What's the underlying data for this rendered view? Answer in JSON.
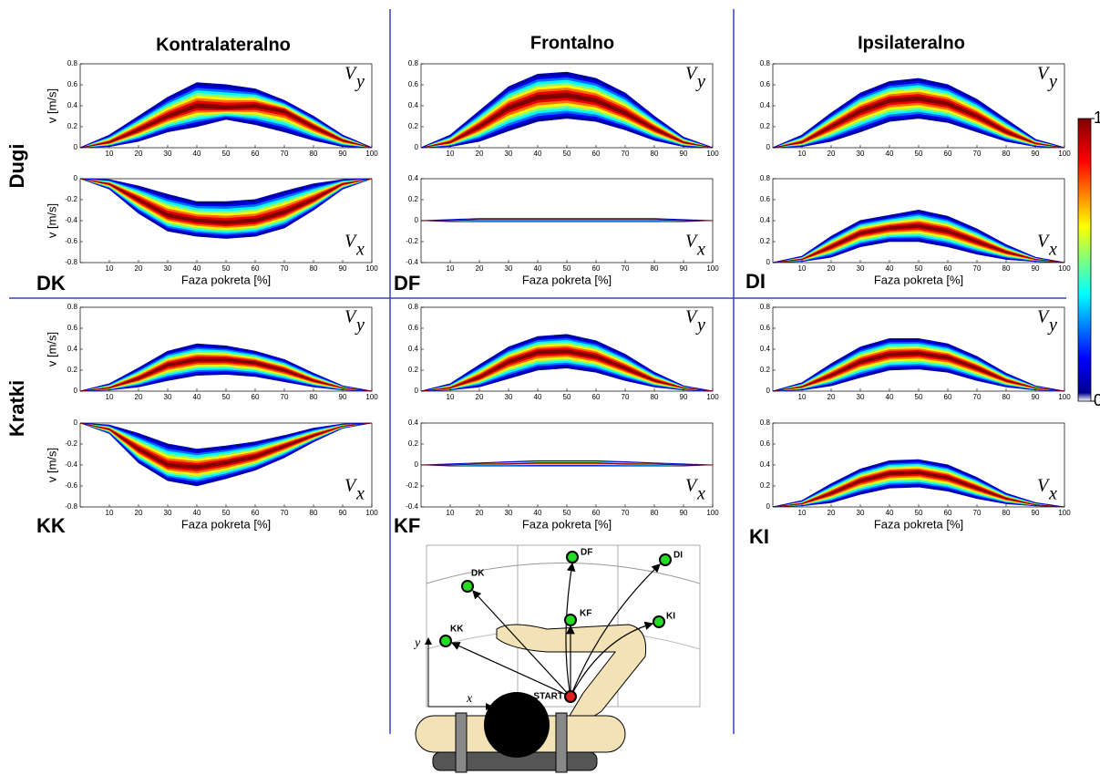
{
  "column_titles": [
    "Kontralateralno",
    "Frontalno",
    "Ipsilateralno"
  ],
  "row_labels": [
    "Dugi",
    "Kratki"
  ],
  "panel_labels": [
    "DK",
    "DF",
    "DI",
    "KK",
    "KF",
    "KI"
  ],
  "colorbar": {
    "lim": [
      0,
      1
    ],
    "ticks": [
      0,
      1
    ]
  },
  "diagram": {
    "targets": [
      "DK",
      "DF",
      "DI",
      "KK",
      "KF",
      "KI"
    ],
    "start": "START",
    "x_axis": "x",
    "y_axis": "y"
  },
  "chart_data": [
    {
      "type": "band",
      "ylabel": "v [m/s]",
      "annotation": "V",
      "annotation_sub": "y",
      "x": [
        0,
        10,
        20,
        30,
        40,
        50,
        60,
        70,
        80,
        90,
        100
      ],
      "values": [
        0,
        0.05,
        0.17,
        0.3,
        0.4,
        0.38,
        0.4,
        0.35,
        0.2,
        0.07,
        0
      ],
      "upper": [
        0,
        0.12,
        0.3,
        0.48,
        0.62,
        0.6,
        0.56,
        0.45,
        0.3,
        0.12,
        0
      ],
      "lower": [
        0,
        0.01,
        0.06,
        0.15,
        0.2,
        0.27,
        0.22,
        0.15,
        0.07,
        0.01,
        0
      ],
      "xlim": [
        0,
        100
      ],
      "ylim": [
        0,
        0.8
      ],
      "xticks": [
        10,
        20,
        30,
        40,
        50,
        60,
        70,
        80,
        90,
        100
      ],
      "yticks": [
        0,
        0.2,
        0.4,
        0.6,
        0.8
      ]
    },
    {
      "type": "band",
      "ylabel": "v [m/s]",
      "xlabel": "Faza pokreta [%]",
      "annotation": "V",
      "annotation_sub": "x",
      "x": [
        0,
        10,
        20,
        30,
        40,
        50,
        60,
        70,
        80,
        90,
        100
      ],
      "values": [
        0,
        -0.05,
        -0.2,
        -0.35,
        -0.4,
        -0.42,
        -0.4,
        -0.32,
        -0.2,
        -0.05,
        0
      ],
      "upper": [
        0,
        -0.01,
        -0.07,
        -0.15,
        -0.22,
        -0.22,
        -0.2,
        -0.12,
        -0.05,
        -0.01,
        0
      ],
      "lower": [
        0,
        -0.1,
        -0.33,
        -0.5,
        -0.55,
        -0.57,
        -0.55,
        -0.47,
        -0.3,
        -0.1,
        0
      ],
      "xlim": [
        0,
        100
      ],
      "ylim": [
        -0.8,
        0
      ],
      "xticks": [
        10,
        20,
        30,
        40,
        50,
        60,
        70,
        80,
        90,
        100
      ],
      "yticks": [
        -0.8,
        -0.6,
        -0.4,
        -0.2,
        0
      ]
    },
    {
      "type": "band",
      "annotation": "V",
      "annotation_sub": "y",
      "x": [
        0,
        10,
        20,
        30,
        40,
        50,
        60,
        70,
        80,
        90,
        100
      ],
      "values": [
        0,
        0.05,
        0.2,
        0.38,
        0.48,
        0.5,
        0.45,
        0.33,
        0.18,
        0.05,
        0
      ],
      "upper": [
        0,
        0.12,
        0.35,
        0.58,
        0.7,
        0.72,
        0.66,
        0.52,
        0.3,
        0.1,
        0
      ],
      "lower": [
        0,
        0.01,
        0.06,
        0.16,
        0.25,
        0.28,
        0.25,
        0.17,
        0.07,
        0.01,
        0
      ],
      "xlim": [
        0,
        100
      ],
      "ylim": [
        0,
        0.8
      ],
      "xticks": [
        10,
        20,
        30,
        40,
        50,
        60,
        70,
        80,
        90,
        100
      ],
      "yticks": [
        0,
        0.2,
        0.4,
        0.6,
        0.8
      ]
    },
    {
      "type": "band",
      "xlabel": "Faza pokreta [%]",
      "annotation": "V",
      "annotation_sub": "x",
      "x": [
        0,
        10,
        20,
        30,
        40,
        50,
        60,
        70,
        80,
        90,
        100
      ],
      "values": [
        0,
        0,
        0.01,
        0.01,
        0.01,
        0.01,
        0.01,
        0.01,
        0.01,
        0,
        0
      ],
      "upper": [
        0,
        0.01,
        0.02,
        0.02,
        0.02,
        0.02,
        0.02,
        0.02,
        0.02,
        0.01,
        0
      ],
      "lower": [
        0,
        -0.01,
        -0.01,
        -0.01,
        -0.01,
        -0.01,
        -0.01,
        -0.01,
        -0.01,
        -0.01,
        0
      ],
      "xlim": [
        0,
        100
      ],
      "ylim": [
        -0.4,
        0.4
      ],
      "xticks": [
        10,
        20,
        30,
        40,
        50,
        60,
        70,
        80,
        90,
        100
      ],
      "yticks": [
        -0.4,
        -0.2,
        0,
        0.2,
        0.4
      ]
    },
    {
      "type": "band",
      "annotation": "V",
      "annotation_sub": "y",
      "x": [
        0,
        10,
        20,
        30,
        40,
        50,
        60,
        70,
        80,
        90,
        100
      ],
      "values": [
        0,
        0.05,
        0.2,
        0.35,
        0.45,
        0.47,
        0.42,
        0.3,
        0.15,
        0.04,
        0
      ],
      "upper": [
        0,
        0.12,
        0.33,
        0.52,
        0.63,
        0.66,
        0.6,
        0.46,
        0.27,
        0.08,
        0
      ],
      "lower": [
        0,
        0.01,
        0.06,
        0.15,
        0.25,
        0.28,
        0.24,
        0.15,
        0.06,
        0.01,
        0
      ],
      "xlim": [
        0,
        100
      ],
      "ylim": [
        0,
        0.8
      ],
      "xticks": [
        10,
        20,
        30,
        40,
        50,
        60,
        70,
        80,
        90,
        100
      ],
      "yticks": [
        0,
        0.2,
        0.4,
        0.6,
        0.8
      ]
    },
    {
      "type": "band",
      "xlabel": "Faza pokreta [%]",
      "annotation": "V",
      "annotation_sub": "x",
      "x": [
        0,
        10,
        20,
        30,
        40,
        50,
        60,
        70,
        80,
        90,
        100
      ],
      "values": [
        0,
        0.03,
        0.15,
        0.28,
        0.33,
        0.35,
        0.3,
        0.2,
        0.1,
        0.03,
        0
      ],
      "upper": [
        0,
        0.06,
        0.25,
        0.4,
        0.45,
        0.5,
        0.44,
        0.32,
        0.17,
        0.05,
        0
      ],
      "lower": [
        0,
        0.01,
        0.05,
        0.15,
        0.2,
        0.2,
        0.15,
        0.08,
        0.03,
        0.01,
        0
      ],
      "xlim": [
        0,
        100
      ],
      "ylim": [
        0,
        0.8
      ],
      "xticks": [
        10,
        20,
        30,
        40,
        50,
        60,
        70,
        80,
        90,
        100
      ],
      "yticks": [
        0,
        0.2,
        0.4,
        0.6,
        0.8
      ]
    },
    {
      "type": "band",
      "ylabel": "v [m/s]",
      "annotation": "V",
      "annotation_sub": "y",
      "x": [
        0,
        10,
        20,
        30,
        40,
        50,
        60,
        70,
        80,
        90,
        100
      ],
      "values": [
        0,
        0.03,
        0.12,
        0.25,
        0.3,
        0.3,
        0.27,
        0.2,
        0.1,
        0.03,
        0
      ],
      "upper": [
        0,
        0.07,
        0.22,
        0.38,
        0.45,
        0.43,
        0.38,
        0.3,
        0.17,
        0.05,
        0
      ],
      "lower": [
        0,
        0.01,
        0.04,
        0.1,
        0.15,
        0.16,
        0.14,
        0.09,
        0.04,
        0.01,
        0
      ],
      "xlim": [
        0,
        100
      ],
      "ylim": [
        0,
        0.8
      ],
      "xticks": [
        10,
        20,
        30,
        40,
        50,
        60,
        70,
        80,
        90,
        100
      ],
      "yticks": [
        0,
        0.2,
        0.4,
        0.6,
        0.8
      ]
    },
    {
      "type": "band",
      "ylabel": "v [m/s]",
      "xlabel": "Faza pokreta [%]",
      "annotation": "V",
      "annotation_sub": "x",
      "x": [
        0,
        10,
        20,
        30,
        40,
        50,
        60,
        70,
        80,
        90,
        100
      ],
      "values": [
        0,
        -0.06,
        -0.25,
        -0.4,
        -0.42,
        -0.38,
        -0.32,
        -0.22,
        -0.12,
        -0.03,
        0
      ],
      "upper": [
        0,
        -0.02,
        -0.1,
        -0.2,
        -0.25,
        -0.22,
        -0.18,
        -0.12,
        -0.05,
        -0.01,
        0
      ],
      "lower": [
        0,
        -0.1,
        -0.38,
        -0.55,
        -0.6,
        -0.53,
        -0.45,
        -0.33,
        -0.18,
        -0.05,
        0
      ],
      "xlim": [
        0,
        100
      ],
      "ylim": [
        -0.8,
        0
      ],
      "xticks": [
        10,
        20,
        30,
        40,
        50,
        60,
        70,
        80,
        90,
        100
      ],
      "yticks": [
        -0.8,
        -0.6,
        -0.4,
        -0.2,
        0
      ]
    },
    {
      "type": "band",
      "annotation": "V",
      "annotation_sub": "y",
      "x": [
        0,
        10,
        20,
        30,
        40,
        50,
        60,
        70,
        80,
        90,
        100
      ],
      "values": [
        0,
        0.03,
        0.13,
        0.28,
        0.37,
        0.38,
        0.33,
        0.22,
        0.1,
        0.03,
        0
      ],
      "upper": [
        0,
        0.07,
        0.25,
        0.42,
        0.52,
        0.54,
        0.48,
        0.35,
        0.18,
        0.05,
        0
      ],
      "lower": [
        0,
        0.01,
        0.04,
        0.12,
        0.2,
        0.22,
        0.18,
        0.1,
        0.04,
        0.01,
        0
      ],
      "xlim": [
        0,
        100
      ],
      "ylim": [
        0,
        0.8
      ],
      "xticks": [
        10,
        20,
        30,
        40,
        50,
        60,
        70,
        80,
        90,
        100
      ],
      "yticks": [
        0,
        0.2,
        0.4,
        0.6,
        0.8
      ]
    },
    {
      "type": "band",
      "xlabel": "Faza pokreta [%]",
      "annotation": "V",
      "annotation_sub": "x",
      "x": [
        0,
        10,
        20,
        30,
        40,
        50,
        60,
        70,
        80,
        90,
        100
      ],
      "values": [
        0,
        0,
        0.01,
        0.01,
        0.02,
        0.02,
        0.02,
        0.01,
        0.01,
        0,
        0
      ],
      "upper": [
        0,
        0.01,
        0.02,
        0.03,
        0.04,
        0.04,
        0.04,
        0.03,
        0.02,
        0.01,
        0
      ],
      "lower": [
        0,
        -0.01,
        -0.01,
        -0.01,
        -0.01,
        -0.01,
        -0.01,
        -0.01,
        -0.01,
        -0.01,
        0
      ],
      "xlim": [
        0,
        100
      ],
      "ylim": [
        -0.4,
        0.4
      ],
      "xticks": [
        10,
        20,
        30,
        40,
        50,
        60,
        70,
        80,
        90,
        100
      ],
      "yticks": [
        -0.4,
        -0.2,
        0,
        0.2,
        0.4
      ]
    },
    {
      "type": "band",
      "annotation": "V",
      "annotation_sub": "y",
      "x": [
        0,
        10,
        20,
        30,
        40,
        50,
        60,
        70,
        80,
        90,
        100
      ],
      "values": [
        0,
        0.04,
        0.15,
        0.28,
        0.35,
        0.36,
        0.32,
        0.22,
        0.1,
        0.03,
        0
      ],
      "upper": [
        0,
        0.08,
        0.26,
        0.42,
        0.5,
        0.5,
        0.45,
        0.33,
        0.17,
        0.05,
        0
      ],
      "lower": [
        0,
        0.01,
        0.05,
        0.13,
        0.2,
        0.21,
        0.18,
        0.1,
        0.04,
        0.01,
        0
      ],
      "xlim": [
        0,
        100
      ],
      "ylim": [
        0,
        0.8
      ],
      "xticks": [
        10,
        20,
        30,
        40,
        50,
        60,
        70,
        80,
        90,
        100
      ],
      "yticks": [
        0,
        0.2,
        0.4,
        0.6,
        0.8
      ]
    },
    {
      "type": "band",
      "xlabel": "Faza pokreta [%]",
      "annotation": "V",
      "annotation_sub": "x",
      "x": [
        0,
        10,
        20,
        30,
        40,
        50,
        60,
        70,
        80,
        90,
        100
      ],
      "values": [
        0,
        0.03,
        0.13,
        0.25,
        0.32,
        0.33,
        0.28,
        0.18,
        0.08,
        0.02,
        0
      ],
      "upper": [
        0,
        0.06,
        0.22,
        0.36,
        0.44,
        0.45,
        0.4,
        0.28,
        0.13,
        0.04,
        0
      ],
      "lower": [
        0,
        0.01,
        0.04,
        0.12,
        0.18,
        0.19,
        0.15,
        0.08,
        0.03,
        0.01,
        0
      ],
      "xlim": [
        0,
        100
      ],
      "ylim": [
        0,
        0.8
      ],
      "xticks": [
        10,
        20,
        30,
        40,
        50,
        60,
        70,
        80,
        90,
        100
      ],
      "yticks": [
        0,
        0.2,
        0.4,
        0.6,
        0.8
      ]
    }
  ]
}
